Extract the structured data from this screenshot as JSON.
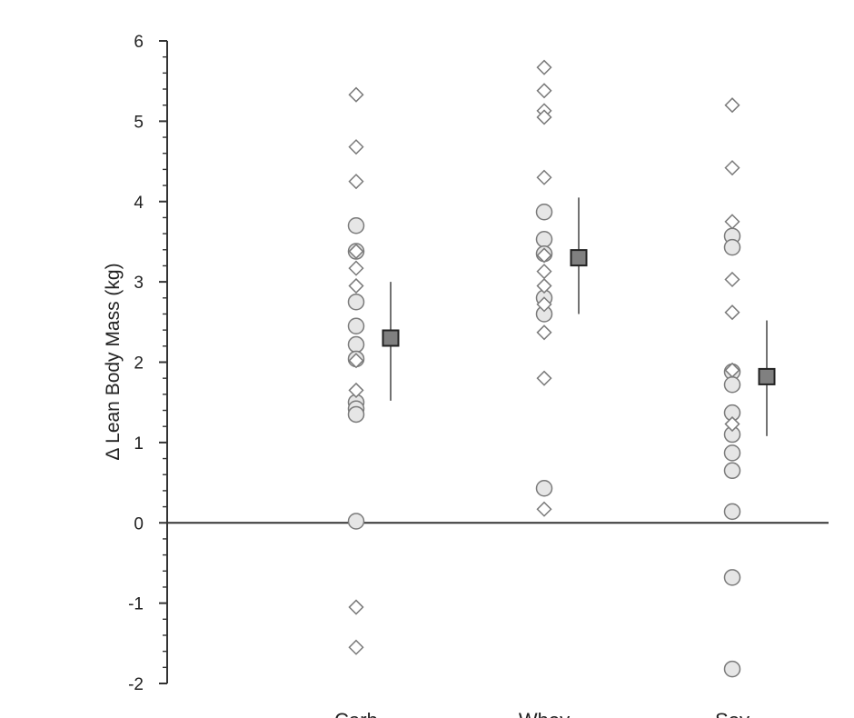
{
  "chart_data": {
    "type": "scatter",
    "title": "",
    "ylabel": "Δ Lean Body Mass (kg)",
    "xlabel": "",
    "ylim": [
      -2,
      6
    ],
    "yticks": [
      6,
      5,
      4,
      3,
      2,
      1,
      0,
      -1,
      -2
    ],
    "categories": [
      "Carb",
      "Whey",
      "Soy"
    ],
    "grid": false,
    "colors": {
      "marker_fill": "#e6e6e6",
      "marker_stroke": "#7a7a7a",
      "mean_fill": "#808080",
      "mean_stroke": "#222222",
      "axis": "#333333"
    },
    "groups": [
      {
        "category": "Carb",
        "diamonds": [
          5.33,
          4.68,
          4.25,
          3.38,
          3.17,
          2.95,
          2.02,
          1.65,
          -1.05,
          -1.55
        ],
        "circles": [
          3.7,
          3.38,
          2.75,
          2.45,
          2.22,
          2.04,
          1.5,
          1.42,
          1.35,
          0.02
        ],
        "mean": 2.3,
        "error": [
          1.52,
          3.0
        ]
      },
      {
        "category": "Whey",
        "diamonds": [
          5.67,
          5.38,
          5.13,
          5.05,
          4.3,
          3.33,
          3.13,
          2.95,
          2.72,
          2.37,
          1.8,
          0.17
        ],
        "circles": [
          3.87,
          3.53,
          3.35,
          2.8,
          2.6,
          0.43
        ],
        "mean": 3.3,
        "error": [
          2.6,
          4.05
        ]
      },
      {
        "category": "Soy",
        "diamonds": [
          5.2,
          4.42,
          3.75,
          3.03,
          2.62,
          1.9,
          1.23
        ],
        "circles": [
          3.57,
          3.43,
          1.88,
          1.72,
          1.37,
          1.1,
          0.87,
          0.65,
          0.14,
          -0.68,
          -1.82
        ],
        "mean": 1.82,
        "error": [
          1.08,
          2.52
        ]
      }
    ]
  }
}
